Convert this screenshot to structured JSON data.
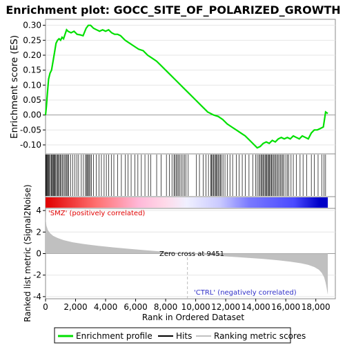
{
  "chart_data": {
    "type": "line",
    "title": "Enrichment plot: GOCC_SITE_OF_POLARIZED_GROWTH",
    "es_panel": {
      "ylabel": "Enrichment score (ES)",
      "ylim": [
        -0.13,
        0.32
      ],
      "yticks": [
        -0.1,
        -0.05,
        0.0,
        0.05,
        0.1,
        0.15,
        0.2,
        0.25,
        0.3
      ],
      "ytick_labels": [
        "-0.10",
        "-0.05",
        "0.00",
        "0.05",
        "0.10",
        "0.15",
        "0.20",
        "0.25",
        "0.30"
      ],
      "series_color": "#00e000",
      "x": [
        0,
        60,
        120,
        200,
        300,
        400,
        500,
        600,
        700,
        800,
        900,
        1000,
        1100,
        1200,
        1300,
        1400,
        1500,
        1700,
        1900,
        2100,
        2300,
        2500,
        2700,
        2850,
        3000,
        3200,
        3400,
        3600,
        3800,
        4000,
        4200,
        4400,
        4600,
        4800,
        5000,
        5300,
        5600,
        5900,
        6200,
        6500,
        6800,
        7100,
        7400,
        7700,
        8000,
        8400,
        8800,
        9200,
        9600,
        10000,
        10400,
        10800,
        11200,
        11500,
        11800,
        12100,
        12400,
        12700,
        13000,
        13300,
        13600,
        13900,
        14100,
        14300,
        14500,
        14700,
        14900,
        15100,
        15300,
        15500,
        15700,
        15900,
        16100,
        16300,
        16500,
        16700,
        16900,
        17100,
        17300,
        17500,
        17700,
        17900,
        18100,
        18300,
        18500,
        18650,
        18800
      ],
      "y": [
        0.0,
        0.03,
        0.07,
        0.12,
        0.14,
        0.15,
        0.18,
        0.21,
        0.24,
        0.25,
        0.255,
        0.25,
        0.26,
        0.255,
        0.27,
        0.285,
        0.28,
        0.275,
        0.28,
        0.27,
        0.268,
        0.265,
        0.29,
        0.3,
        0.3,
        0.29,
        0.285,
        0.28,
        0.285,
        0.28,
        0.285,
        0.275,
        0.27,
        0.27,
        0.265,
        0.25,
        0.24,
        0.23,
        0.22,
        0.215,
        0.2,
        0.19,
        0.18,
        0.165,
        0.15,
        0.13,
        0.11,
        0.09,
        0.07,
        0.05,
        0.03,
        0.01,
        0.0,
        -0.005,
        -0.015,
        -0.03,
        -0.04,
        -0.05,
        -0.06,
        -0.07,
        -0.085,
        -0.1,
        -0.11,
        -0.105,
        -0.095,
        -0.09,
        -0.095,
        -0.085,
        -0.09,
        -0.08,
        -0.075,
        -0.08,
        -0.075,
        -0.08,
        -0.07,
        -0.075,
        -0.08,
        -0.07,
        -0.075,
        -0.08,
        -0.06,
        -0.05,
        -0.05,
        -0.045,
        -0.04,
        0.01,
        0.005
      ]
    },
    "hits_panel": {
      "hit_positions": [
        10,
        40,
        80,
        120,
        160,
        200,
        260,
        320,
        380,
        420,
        470,
        530,
        580,
        620,
        680,
        740,
        800,
        860,
        920,
        980,
        1050,
        1120,
        1200,
        1280,
        1350,
        1420,
        1480,
        1550,
        1680,
        1820,
        1950,
        2080,
        2200,
        2380,
        2520,
        2660,
        2720,
        2780,
        2850,
        2900,
        2980,
        3050,
        3200,
        3380,
        3560,
        3720,
        3900,
        4050,
        4200,
        4380,
        4550,
        4800,
        5050,
        5300,
        5500,
        5700,
        5950,
        6150,
        6380,
        6620,
        6850,
        7000,
        7400,
        7700,
        8050,
        8250,
        8420,
        8550,
        8620,
        8700,
        8780,
        8860,
        8950,
        9050,
        9150,
        9250,
        9350,
        9500,
        10050,
        10250,
        10500,
        10680,
        10850,
        11000,
        11050,
        11120,
        11180,
        11250,
        11320,
        11380,
        11440,
        11500,
        11580,
        11650,
        11720,
        11820,
        11950,
        12100,
        12280,
        12460,
        12700,
        12900,
        13100,
        13300,
        13550,
        13800,
        14000,
        14100,
        14200,
        14280,
        14350,
        14420,
        14480,
        14550,
        14620,
        14680,
        14740,
        14800,
        14860,
        14920,
        14980,
        15040,
        15100,
        15180,
        15250,
        15320,
        15400,
        15480,
        15560,
        15640,
        15720,
        15800,
        15880,
        16000,
        16100,
        16200,
        16350,
        16500,
        16700,
        16950,
        17150,
        17400,
        17700,
        17900,
        18150,
        18400,
        18550,
        18650
      ]
    },
    "metric_panel": {
      "ylabel": "Ranked list metric (Signal2Noise)",
      "xlabel": "Rank in Ordered Dataset",
      "ylim": [
        -4.2,
        4.2
      ],
      "yticks": [
        -4,
        -2,
        0,
        2,
        4
      ],
      "ytick_labels": [
        "-4",
        "-2",
        "0",
        "2",
        "4"
      ],
      "x": [
        0,
        20,
        60,
        150,
        300,
        500,
        800,
        1200,
        1800,
        2500,
        3500,
        4500,
        5500,
        6500,
        7500,
        8500,
        9451,
        10500,
        11500,
        12500,
        13500,
        14500,
        15500,
        16300,
        17000,
        17500,
        17900,
        18200,
        18400,
        18550,
        18650,
        18720,
        18780,
        18800
      ],
      "y": [
        3.8,
        3.1,
        2.6,
        2.2,
        1.9,
        1.65,
        1.45,
        1.25,
        1.05,
        0.9,
        0.72,
        0.58,
        0.45,
        0.33,
        0.22,
        0.1,
        0.0,
        -0.12,
        -0.22,
        -0.3,
        -0.4,
        -0.5,
        -0.62,
        -0.75,
        -0.9,
        -1.05,
        -1.25,
        -1.5,
        -1.8,
        -2.2,
        -2.7,
        -3.2,
        -3.7,
        -3.8
      ],
      "label_pos": "'SMZ' (positively correlated)",
      "label_neg": "'CTRL' (negatively correlated)",
      "zero_cross_label": "Zero cross at 9451",
      "zero_cross_value": 9451,
      "fill_color": "#c0c0c0"
    },
    "x_axis": {
      "xlim": [
        0,
        19300
      ],
      "xticks": [
        0,
        2000,
        4000,
        6000,
        8000,
        10000,
        12000,
        14000,
        16000,
        18000
      ],
      "xtick_labels": [
        "0",
        "2,000",
        "4,000",
        "6,000",
        "8,000",
        "10,000",
        "12,000",
        "14,000",
        "16,000",
        "18,000"
      ],
      "n_genes": 18800
    },
    "legend": {
      "placement": "bottom",
      "entries": [
        {
          "label": "Enrichment profile",
          "color": "#00e000"
        },
        {
          "label": "Hits",
          "color": "#000000"
        },
        {
          "label": "Ranking metric scores",
          "color": "#c0c0c0"
        }
      ]
    }
  }
}
